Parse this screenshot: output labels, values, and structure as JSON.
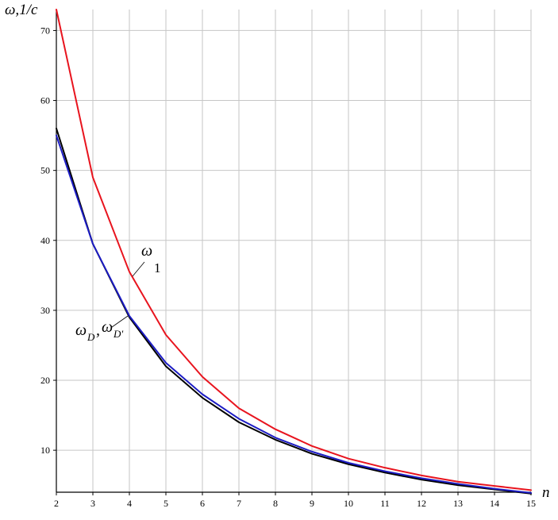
{
  "chart_data": {
    "type": "line",
    "x": [
      2,
      3,
      4,
      5,
      6,
      7,
      8,
      9,
      10,
      11,
      12,
      13,
      14,
      15
    ],
    "xlim": [
      2,
      15
    ],
    "ylim": [
      4,
      73
    ],
    "x_ticks": [
      "2",
      "3",
      "4",
      "5",
      "6",
      "7",
      "8",
      "9",
      "10",
      "11",
      "12",
      "13",
      "14",
      "15"
    ],
    "y_ticks": [
      10,
      20,
      30,
      40,
      50,
      60,
      70
    ],
    "y_tick_labels": [
      "10",
      "20",
      "30",
      "40",
      "50",
      "60",
      "70"
    ],
    "xlabel": "n",
    "ylabel": "ω,1/c",
    "grid": true,
    "series": [
      {
        "id": "omega1",
        "color": "#e8141e",
        "values": [
          73,
          49,
          35.5,
          26.5,
          20.5,
          16,
          13,
          10.6,
          8.8,
          7.5,
          6.4,
          5.5,
          4.9,
          4.3
        ]
      },
      {
        "id": "omegaD",
        "color": "#000000",
        "values": [
          56,
          39.5,
          29,
          22,
          17.5,
          14,
          11.5,
          9.5,
          8,
          6.8,
          5.8,
          5,
          4.4,
          3.8
        ]
      },
      {
        "id": "omegaDprime",
        "color": "#1c1cc4",
        "values": [
          55,
          39.5,
          29.2,
          22.5,
          18,
          14.5,
          11.8,
          9.8,
          8.2,
          7,
          6,
          5.2,
          4.5,
          3.9
        ]
      }
    ],
    "annotations": {
      "omega1": {
        "main": "ω",
        "sub": "1"
      },
      "omegaD": {
        "main1": "ω",
        "sub1": "D",
        "sep": ",",
        "main2": "ω",
        "sub2": "D'"
      }
    }
  }
}
